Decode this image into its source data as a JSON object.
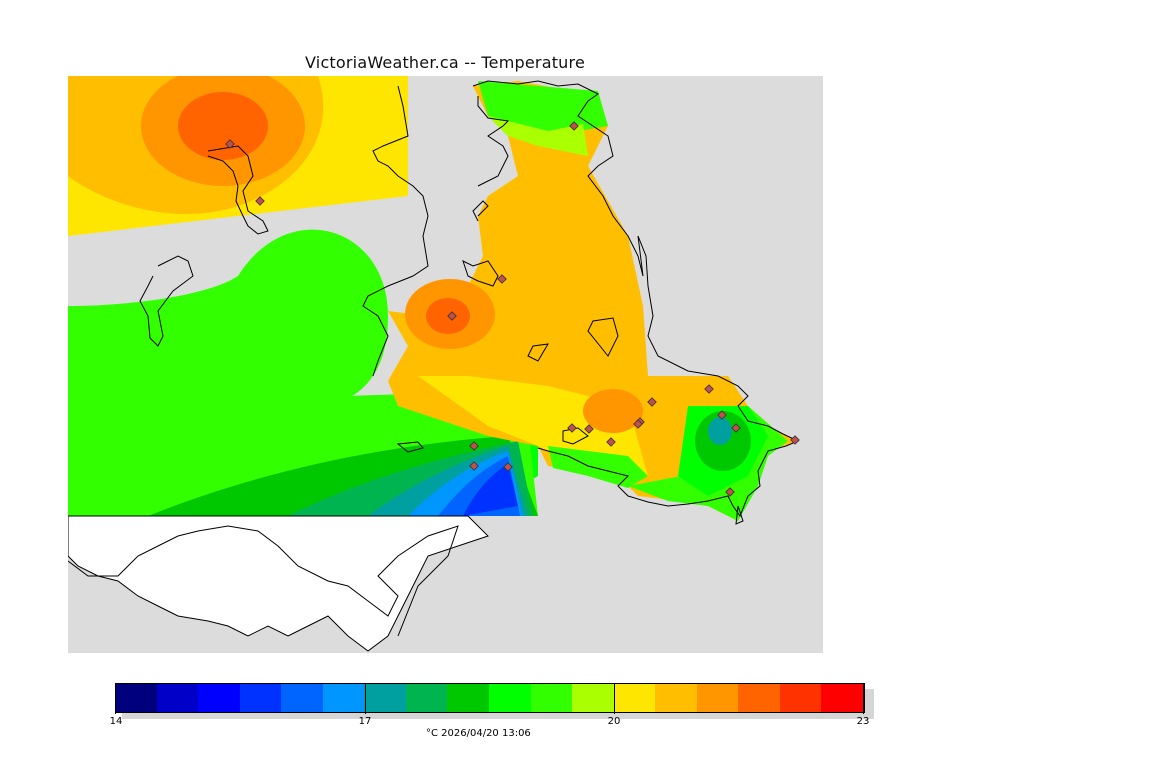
{
  "title": "VictoriaWeather.ca -- Temperature",
  "legend": {
    "units": "°C",
    "timestamp": "2026/04/20 13:06",
    "caption": "°C  2026/04/20 13:06",
    "tick_labels": [
      "14",
      "17",
      "20",
      "23"
    ],
    "min": 14,
    "max": 23,
    "colors": [
      "#00007f",
      "#0000c8",
      "#0000ff",
      "#0032ff",
      "#0064ff",
      "#0096ff",
      "#00a0a0",
      "#00b450",
      "#00c800",
      "#00ff00",
      "#32ff00",
      "#aaff00",
      "#ffe600",
      "#ffbe00",
      "#ff9600",
      "#ff6400",
      "#ff3200",
      "#ff0000"
    ]
  },
  "map": {
    "land_color": "#ffffff",
    "water_color": "#dcdcdc",
    "coastline_color": "#000000",
    "station_count": 19
  }
}
